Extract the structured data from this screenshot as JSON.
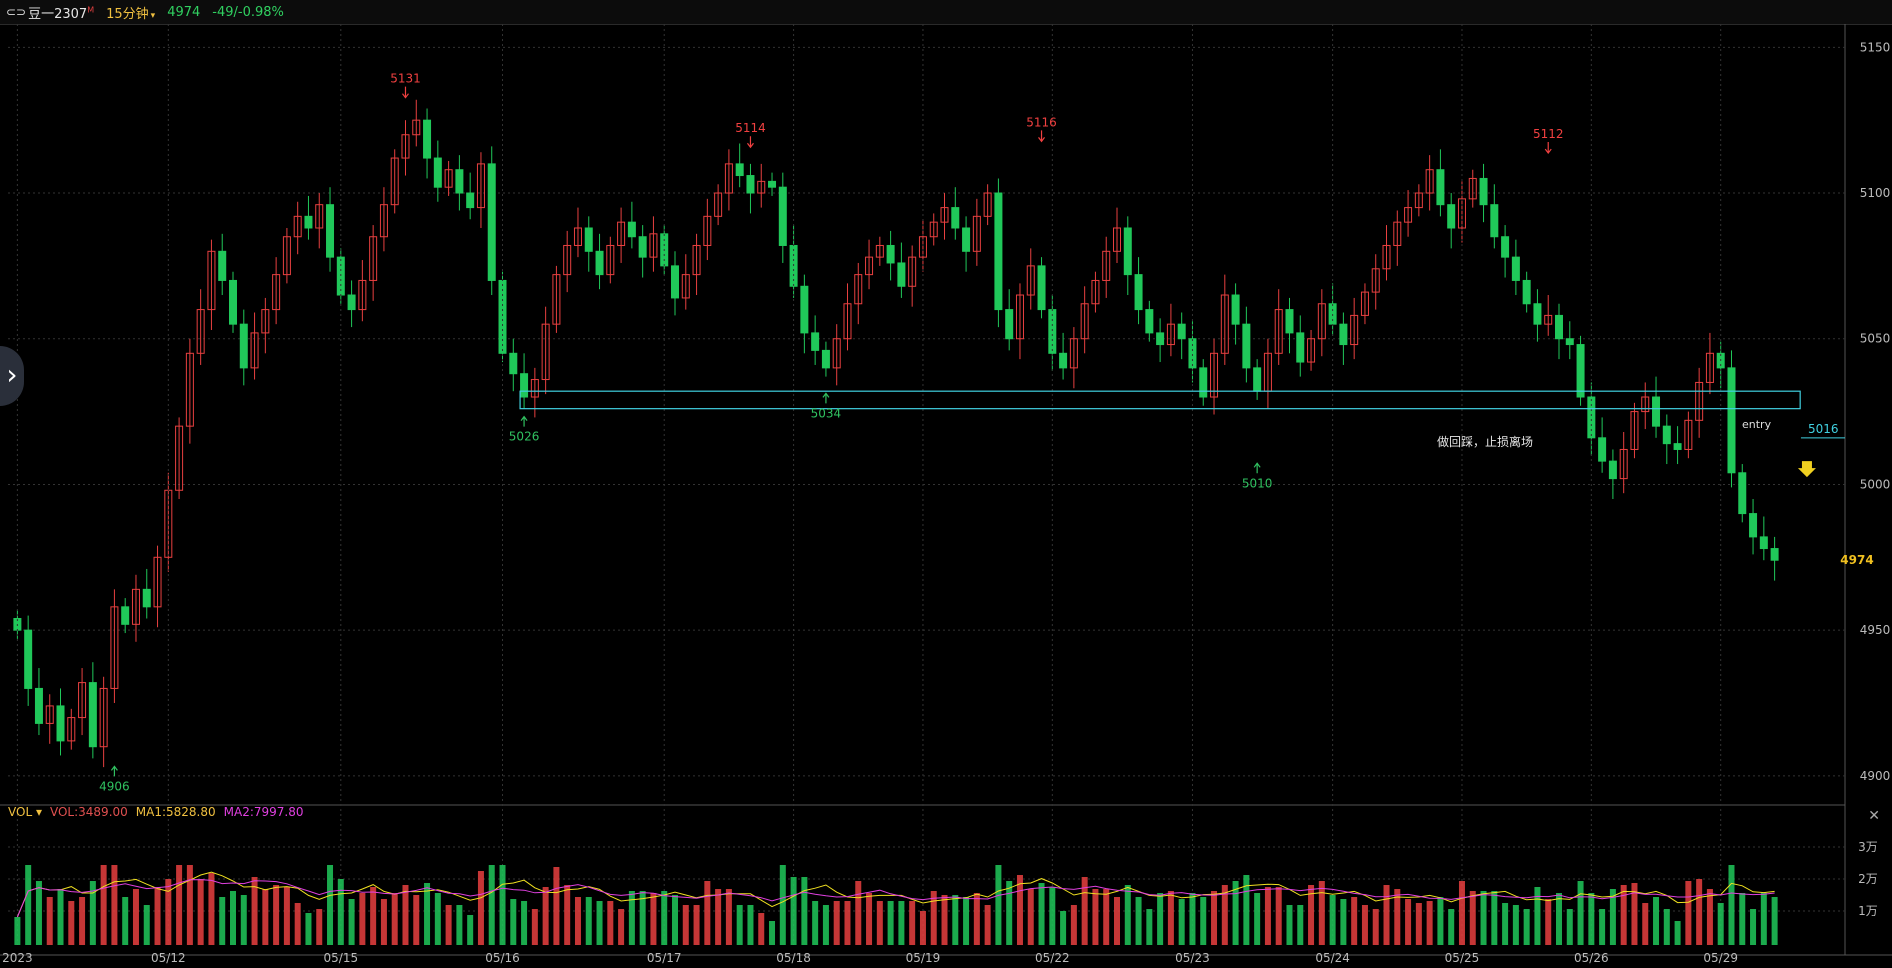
{
  "header": {
    "symbol_icon": "link-icon",
    "symbol": "豆一2307",
    "symbol_suffix": "M",
    "interval": "15分钟",
    "last_price": "4974",
    "change": "-49/-0.98%"
  },
  "volume_panel": {
    "indicator": "VOL",
    "vol_text": "VOL:3489.00",
    "ma1_text": "MA1:5828.80",
    "ma2_text": "MA2:7997.80",
    "close_icon": "close-icon"
  },
  "colors": {
    "up": "#e84040",
    "down": "#20c85a",
    "ma1": "#f0e020",
    "ma2": "#e040e0",
    "box": "#40d0e0",
    "grid": "#333333",
    "annotation_red": "#f04040",
    "annotation_green": "#30c060",
    "current_price": "#f0c020"
  },
  "chart_data": {
    "type": "candlestick",
    "y_ticks": [
      4900,
      4950,
      5000,
      5050,
      5100,
      5150
    ],
    "ylim": [
      4890,
      5158
    ],
    "current_price": 4974,
    "date_labels": [
      "2023",
      "05/12",
      "05/15",
      "05/16",
      "05/17",
      "05/18",
      "05/19",
      "05/22",
      "05/23",
      "05/24",
      "05/25",
      "05/26",
      "05/29"
    ],
    "candles": [
      {
        "close": 4950,
        "date": "2023"
      },
      {
        "close": 4930,
        "date": ""
      },
      {
        "close": 4918,
        "date": ""
      },
      {
        "close": 4924,
        "date": ""
      },
      {
        "close": 4912,
        "date": ""
      },
      {
        "close": 4920,
        "date": ""
      },
      {
        "close": 4932,
        "date": ""
      },
      {
        "close": 4910,
        "date": ""
      },
      {
        "close": 4930,
        "date": ""
      },
      {
        "close": 4958,
        "date": ""
      },
      {
        "close": 4952,
        "date": ""
      },
      {
        "close": 4964,
        "date": ""
      },
      {
        "close": 4958,
        "date": ""
      },
      {
        "close": 4975,
        "date": ""
      },
      {
        "close": 4998,
        "date": "05/12"
      },
      {
        "close": 5020,
        "date": ""
      },
      {
        "close": 5045,
        "date": ""
      },
      {
        "close": 5060,
        "date": ""
      },
      {
        "close": 5080,
        "date": ""
      },
      {
        "close": 5070,
        "date": ""
      },
      {
        "close": 5055,
        "date": ""
      },
      {
        "close": 5040,
        "date": ""
      },
      {
        "close": 5052,
        "date": ""
      },
      {
        "close": 5060,
        "date": ""
      },
      {
        "close": 5072,
        "date": ""
      },
      {
        "close": 5085,
        "date": ""
      },
      {
        "close": 5092,
        "date": ""
      },
      {
        "close": 5088,
        "date": ""
      },
      {
        "close": 5096,
        "date": ""
      },
      {
        "close": 5078,
        "date": ""
      },
      {
        "close": 5065,
        "date": "05/15"
      },
      {
        "close": 5060,
        "date": ""
      },
      {
        "close": 5070,
        "date": ""
      },
      {
        "close": 5085,
        "date": ""
      },
      {
        "close": 5096,
        "date": ""
      },
      {
        "close": 5112,
        "date": ""
      },
      {
        "close": 5120,
        "date": ""
      },
      {
        "close": 5125,
        "date": ""
      },
      {
        "close": 5112,
        "date": ""
      },
      {
        "close": 5102,
        "date": ""
      },
      {
        "close": 5108,
        "date": ""
      },
      {
        "close": 5100,
        "date": ""
      },
      {
        "close": 5095,
        "date": ""
      },
      {
        "close": 5110,
        "date": ""
      },
      {
        "close": 5070,
        "date": ""
      },
      {
        "close": 5045,
        "date": "05/16"
      },
      {
        "close": 5038,
        "date": ""
      },
      {
        "close": 5030,
        "date": ""
      },
      {
        "close": 5036,
        "date": ""
      },
      {
        "close": 5055,
        "date": ""
      },
      {
        "close": 5072,
        "date": ""
      },
      {
        "close": 5082,
        "date": ""
      },
      {
        "close": 5088,
        "date": ""
      },
      {
        "close": 5080,
        "date": ""
      },
      {
        "close": 5072,
        "date": ""
      },
      {
        "close": 5082,
        "date": ""
      },
      {
        "close": 5090,
        "date": ""
      },
      {
        "close": 5085,
        "date": ""
      },
      {
        "close": 5078,
        "date": ""
      },
      {
        "close": 5086,
        "date": ""
      },
      {
        "close": 5075,
        "date": "05/17"
      },
      {
        "close": 5064,
        "date": ""
      },
      {
        "close": 5072,
        "date": ""
      },
      {
        "close": 5082,
        "date": ""
      },
      {
        "close": 5092,
        "date": ""
      },
      {
        "close": 5100,
        "date": ""
      },
      {
        "close": 5110,
        "date": ""
      },
      {
        "close": 5106,
        "date": ""
      },
      {
        "close": 5100,
        "date": ""
      },
      {
        "close": 5104,
        "date": ""
      },
      {
        "close": 5102,
        "date": ""
      },
      {
        "close": 5082,
        "date": ""
      },
      {
        "close": 5068,
        "date": "05/18"
      },
      {
        "close": 5052,
        "date": ""
      },
      {
        "close": 5046,
        "date": ""
      },
      {
        "close": 5040,
        "date": ""
      },
      {
        "close": 5050,
        "date": ""
      },
      {
        "close": 5062,
        "date": ""
      },
      {
        "close": 5072,
        "date": ""
      },
      {
        "close": 5078,
        "date": ""
      },
      {
        "close": 5082,
        "date": ""
      },
      {
        "close": 5076,
        "date": ""
      },
      {
        "close": 5068,
        "date": ""
      },
      {
        "close": 5078,
        "date": ""
      },
      {
        "close": 5085,
        "date": "05/19"
      },
      {
        "close": 5090,
        "date": ""
      },
      {
        "close": 5095,
        "date": ""
      },
      {
        "close": 5088,
        "date": ""
      },
      {
        "close": 5080,
        "date": ""
      },
      {
        "close": 5092,
        "date": ""
      },
      {
        "close": 5100,
        "date": ""
      },
      {
        "close": 5060,
        "date": ""
      },
      {
        "close": 5050,
        "date": ""
      },
      {
        "close": 5065,
        "date": ""
      },
      {
        "close": 5075,
        "date": ""
      },
      {
        "close": 5060,
        "date": ""
      },
      {
        "close": 5045,
        "date": "05/22"
      },
      {
        "close": 5040,
        "date": ""
      },
      {
        "close": 5050,
        "date": ""
      },
      {
        "close": 5062,
        "date": ""
      },
      {
        "close": 5070,
        "date": ""
      },
      {
        "close": 5080,
        "date": ""
      },
      {
        "close": 5088,
        "date": ""
      },
      {
        "close": 5072,
        "date": ""
      },
      {
        "close": 5060,
        "date": ""
      },
      {
        "close": 5052,
        "date": ""
      },
      {
        "close": 5048,
        "date": ""
      },
      {
        "close": 5055,
        "date": ""
      },
      {
        "close": 5050,
        "date": ""
      },
      {
        "close": 5040,
        "date": "05/23"
      },
      {
        "close": 5030,
        "date": ""
      },
      {
        "close": 5045,
        "date": ""
      },
      {
        "close": 5065,
        "date": ""
      },
      {
        "close": 5055,
        "date": ""
      },
      {
        "close": 5040,
        "date": ""
      },
      {
        "close": 5032,
        "date": ""
      },
      {
        "close": 5045,
        "date": ""
      },
      {
        "close": 5060,
        "date": ""
      },
      {
        "close": 5052,
        "date": ""
      },
      {
        "close": 5042,
        "date": ""
      },
      {
        "close": 5050,
        "date": ""
      },
      {
        "close": 5062,
        "date": ""
      },
      {
        "close": 5055,
        "date": "05/24"
      },
      {
        "close": 5048,
        "date": ""
      },
      {
        "close": 5058,
        "date": ""
      },
      {
        "close": 5066,
        "date": ""
      },
      {
        "close": 5074,
        "date": ""
      },
      {
        "close": 5082,
        "date": ""
      },
      {
        "close": 5090,
        "date": ""
      },
      {
        "close": 5095,
        "date": ""
      },
      {
        "close": 5100,
        "date": ""
      },
      {
        "close": 5108,
        "date": ""
      },
      {
        "close": 5096,
        "date": ""
      },
      {
        "close": 5088,
        "date": ""
      },
      {
        "close": 5098,
        "date": "05/25"
      },
      {
        "close": 5105,
        "date": ""
      },
      {
        "close": 5096,
        "date": ""
      },
      {
        "close": 5085,
        "date": ""
      },
      {
        "close": 5078,
        "date": ""
      },
      {
        "close": 5070,
        "date": ""
      },
      {
        "close": 5062,
        "date": ""
      },
      {
        "close": 5055,
        "date": ""
      },
      {
        "close": 5058,
        "date": ""
      },
      {
        "close": 5050,
        "date": ""
      },
      {
        "close": 5048,
        "date": ""
      },
      {
        "close": 5030,
        "date": ""
      },
      {
        "close": 5016,
        "date": "05/26"
      },
      {
        "close": 5008,
        "date": ""
      },
      {
        "close": 5002,
        "date": ""
      },
      {
        "close": 5012,
        "date": ""
      },
      {
        "close": 5025,
        "date": ""
      },
      {
        "close": 5030,
        "date": ""
      },
      {
        "close": 5020,
        "date": ""
      },
      {
        "close": 5014,
        "date": ""
      },
      {
        "close": 5012,
        "date": ""
      },
      {
        "close": 5022,
        "date": ""
      },
      {
        "close": 5035,
        "date": ""
      },
      {
        "close": 5045,
        "date": ""
      },
      {
        "close": 5040,
        "date": "05/29"
      },
      {
        "close": 5004,
        "date": ""
      },
      {
        "close": 4990,
        "date": ""
      },
      {
        "close": 4982,
        "date": ""
      },
      {
        "close": 4978,
        "date": ""
      },
      {
        "close": 4974,
        "date": ""
      }
    ],
    "volume_y_ticks": [
      "1万",
      "2万",
      "3万"
    ],
    "annotations": [
      {
        "text": "5131",
        "price": 5131,
        "index": 36,
        "kind": "high"
      },
      {
        "text": "5114",
        "price": 5114,
        "index": 68,
        "kind": "high"
      },
      {
        "text": "5116",
        "price": 5116,
        "index": 95,
        "kind": "high"
      },
      {
        "text": "5112",
        "price": 5112,
        "index": 142,
        "kind": "high"
      },
      {
        "text": "4906",
        "price": 4906,
        "index": 9,
        "kind": "low"
      },
      {
        "text": "5026",
        "price": 5026,
        "index": 47,
        "kind": "low"
      },
      {
        "text": "5034",
        "price": 5034,
        "index": 75,
        "kind": "low"
      },
      {
        "text": "5010",
        "price": 5010,
        "index": 115,
        "kind": "low"
      }
    ],
    "box": {
      "low": 5026,
      "high": 5032,
      "from_index": 47,
      "to_index": 165
    },
    "entry_line": {
      "price": 5016,
      "label": "entry",
      "value_text": "5016",
      "from_index": 166
    },
    "note": "做回踩，止损离场",
    "signal_index": 166
  }
}
